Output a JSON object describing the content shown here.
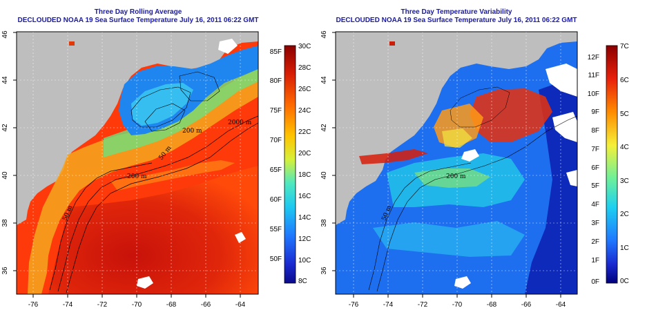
{
  "panels": [
    {
      "title1": "Three Day Rolling Average",
      "title2": "DECLOUDED NOAA 19 Sea Surface Temperature July 16, 2011 06:22 GMT",
      "x_ticks": [
        "-76",
        "-74",
        "-72",
        "-70",
        "-68",
        "-66",
        "-64"
      ],
      "y_ticks": [
        "36",
        "38",
        "40",
        "42",
        "44",
        "46"
      ],
      "contour_labels": [
        "50 m",
        "200 m",
        "50 m",
        "200 m",
        "2000 m"
      ],
      "colorbar": {
        "f_labels": [
          "85F",
          "80F",
          "75F",
          "70F",
          "65F",
          "60F",
          "55F",
          "50F"
        ],
        "c_labels": [
          "30C",
          "28C",
          "26C",
          "24C",
          "22C",
          "20C",
          "18C",
          "16C",
          "14C",
          "12C",
          "10C",
          "8C"
        ]
      }
    },
    {
      "title1": "Three Day Temperature Variability",
      "title2": "DECLOUDED NOAA 19 Sea Surface Temperature July 16, 2011 06:22 GMT",
      "x_ticks": [
        "-76",
        "-74",
        "-72",
        "-70",
        "-68",
        "-66",
        "-64"
      ],
      "y_ticks": [
        "36",
        "38",
        "40",
        "42",
        "44",
        "46"
      ],
      "contour_labels": [
        "50 m",
        "200 m"
      ],
      "colorbar": {
        "f_labels": [
          "12F",
          "11F",
          "10F",
          "9F",
          "8F",
          "7F",
          "6F",
          "5F",
          "4F",
          "3F",
          "2F",
          "1F",
          "0F"
        ],
        "c_labels": [
          "7C",
          "6C",
          "5C",
          "4C",
          "3C",
          "2C",
          "1C",
          "0C"
        ]
      }
    }
  ],
  "colors": {
    "land": "#bebebe",
    "title": "#1a1aa6",
    "warm": "#d41e0a",
    "cool": "#1f5fe0",
    "background": "#ffffff"
  }
}
